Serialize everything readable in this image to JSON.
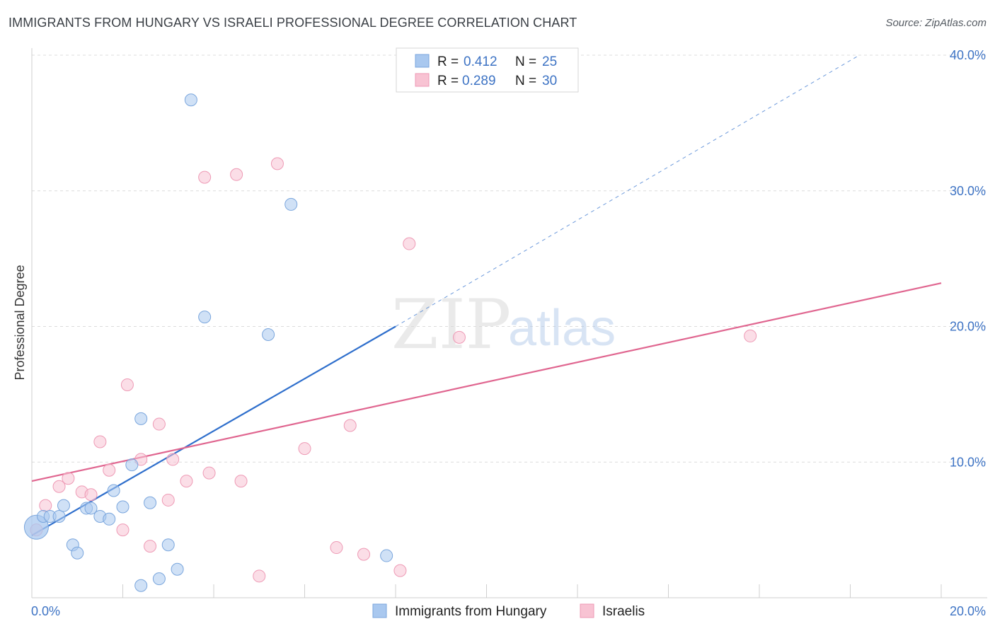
{
  "title": "IMMIGRANTS FROM HUNGARY VS ISRAELI PROFESSIONAL DEGREE CORRELATION CHART",
  "source": "Source: ZipAtlas.com",
  "watermark": {
    "zip": "ZIP",
    "atlas": "atlas"
  },
  "chart_data": {
    "type": "scatter",
    "title": "IMMIGRANTS FROM HUNGARY VS ISRAELI PROFESSIONAL DEGREE CORRELATION CHART",
    "xlabel": "",
    "ylabel": "Professional Degree",
    "xlim": [
      0,
      20
    ],
    "ylim": [
      0,
      40
    ],
    "x_tick_labels": [
      {
        "value": 0,
        "label": "0.0%"
      },
      {
        "value": 20,
        "label": "20.0%"
      }
    ],
    "y_tick_labels": [
      {
        "value": 10,
        "label": "10.0%"
      },
      {
        "value": 20,
        "label": "20.0%"
      },
      {
        "value": 30,
        "label": "30.0%"
      },
      {
        "value": 40,
        "label": "40.0%"
      }
    ],
    "grid": true,
    "legend": {
      "placement": "top-center",
      "entries": [
        {
          "r_label": "R =",
          "r_value": "0.412",
          "n_label": "N =",
          "n_value": "25"
        },
        {
          "r_label": "R =",
          "r_value": "0.289",
          "n_label": "N =",
          "n_value": "30"
        }
      ]
    },
    "series": [
      {
        "name": "Immigrants from Hungary",
        "color": "#a9c8ef",
        "stroke": "#7aa6dd",
        "line_color": "#2f6fcc",
        "trend": {
          "x0": 0,
          "y0": 4.6,
          "x1": 8,
          "y1": 20.0,
          "dash_to_x": 18.2,
          "dash_to_y": 40.0
        },
        "points": [
          {
            "x": 0.1,
            "y": 5.2,
            "big": true
          },
          {
            "x": 0.25,
            "y": 6.0
          },
          {
            "x": 0.4,
            "y": 6.0
          },
          {
            "x": 0.6,
            "y": 6.0
          },
          {
            "x": 0.7,
            "y": 6.8
          },
          {
            "x": 0.9,
            "y": 3.9
          },
          {
            "x": 1.0,
            "y": 3.3
          },
          {
            "x": 1.2,
            "y": 6.6
          },
          {
            "x": 1.3,
            "y": 6.6
          },
          {
            "x": 1.5,
            "y": 6.0
          },
          {
            "x": 1.7,
            "y": 5.8
          },
          {
            "x": 1.8,
            "y": 7.9
          },
          {
            "x": 2.0,
            "y": 6.7
          },
          {
            "x": 2.2,
            "y": 9.8
          },
          {
            "x": 2.4,
            "y": 13.2
          },
          {
            "x": 2.6,
            "y": 7.0
          },
          {
            "x": 2.8,
            "y": 1.4
          },
          {
            "x": 3.0,
            "y": 3.9
          },
          {
            "x": 3.2,
            "y": 2.1
          },
          {
            "x": 3.5,
            "y": 36.7
          },
          {
            "x": 3.8,
            "y": 20.7
          },
          {
            "x": 5.2,
            "y": 19.4
          },
          {
            "x": 5.7,
            "y": 29.0
          },
          {
            "x": 7.8,
            "y": 3.1
          },
          {
            "x": 2.4,
            "y": 0.9
          }
        ]
      },
      {
        "name": "Israelis",
        "color": "#f8c3d3",
        "stroke": "#ee9ab5",
        "line_color": "#e06690",
        "trend": {
          "x0": 0,
          "y0": 8.6,
          "x1": 20,
          "y1": 23.2
        },
        "points": [
          {
            "x": 0.1,
            "y": 5.0
          },
          {
            "x": 0.3,
            "y": 6.8
          },
          {
            "x": 0.6,
            "y": 8.2
          },
          {
            "x": 0.8,
            "y": 8.8
          },
          {
            "x": 1.1,
            "y": 7.8
          },
          {
            "x": 1.3,
            "y": 7.6
          },
          {
            "x": 1.5,
            "y": 11.5
          },
          {
            "x": 1.7,
            "y": 9.4
          },
          {
            "x": 2.0,
            "y": 5.0
          },
          {
            "x": 2.1,
            "y": 15.7
          },
          {
            "x": 2.4,
            "y": 10.2
          },
          {
            "x": 2.6,
            "y": 3.8
          },
          {
            "x": 2.8,
            "y": 12.8
          },
          {
            "x": 3.0,
            "y": 7.2
          },
          {
            "x": 3.1,
            "y": 10.2
          },
          {
            "x": 3.4,
            "y": 8.6
          },
          {
            "x": 3.8,
            "y": 31.0
          },
          {
            "x": 3.9,
            "y": 9.2
          },
          {
            "x": 4.5,
            "y": 31.2
          },
          {
            "x": 4.6,
            "y": 8.6
          },
          {
            "x": 5.0,
            "y": 1.6
          },
          {
            "x": 5.4,
            "y": 32.0
          },
          {
            "x": 6.0,
            "y": 11.0
          },
          {
            "x": 6.7,
            "y": 3.7
          },
          {
            "x": 7.0,
            "y": 12.7
          },
          {
            "x": 7.3,
            "y": 3.2
          },
          {
            "x": 8.1,
            "y": 2.0
          },
          {
            "x": 8.3,
            "y": 26.1
          },
          {
            "x": 9.4,
            "y": 19.2
          },
          {
            "x": 15.8,
            "y": 19.3
          }
        ]
      }
    ]
  }
}
